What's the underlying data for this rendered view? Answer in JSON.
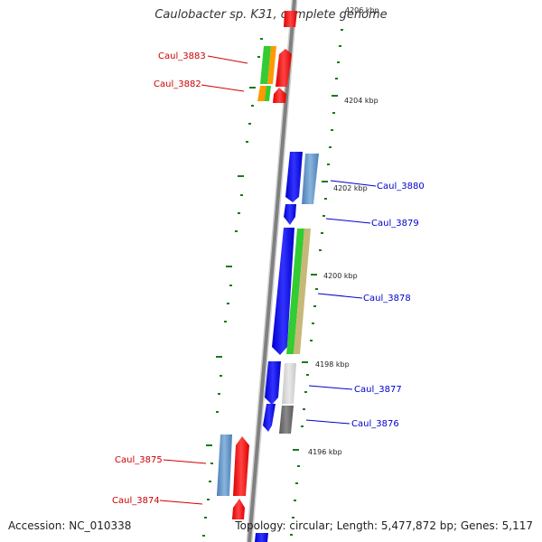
{
  "title": "Caulobacter sp. K31, complete genome",
  "accession": "Accession: NC_010338",
  "topology": "Topology: circular; Length: 5,477,872 bp; Genes: 5,117",
  "kbp_labels": {
    "l4206": "4206 kbp",
    "l4204": "4204 kbp",
    "l4202": "4202 kbp",
    "l4200": "4200 kbp",
    "l4198": "4198 kbp",
    "l4196": "4196 kbp"
  },
  "gene_labels": {
    "g3883": "Caul_3883",
    "g3882": "Caul_3882",
    "g3880": "Caul_3880",
    "g3879": "Caul_3879",
    "g3878": "Caul_3878",
    "g3877": "Caul_3877",
    "g3876": "Caul_3876",
    "g3875": "Caul_3875",
    "g3874": "Caul_3874"
  },
  "colors": {
    "minus_strand_label": "#cc0000",
    "plus_strand_label": "#0000cc",
    "backbone": "#888888",
    "tick": "#1a7a1a",
    "cds_plus": "#0000ee",
    "cds_minus": "#ee0000"
  }
}
